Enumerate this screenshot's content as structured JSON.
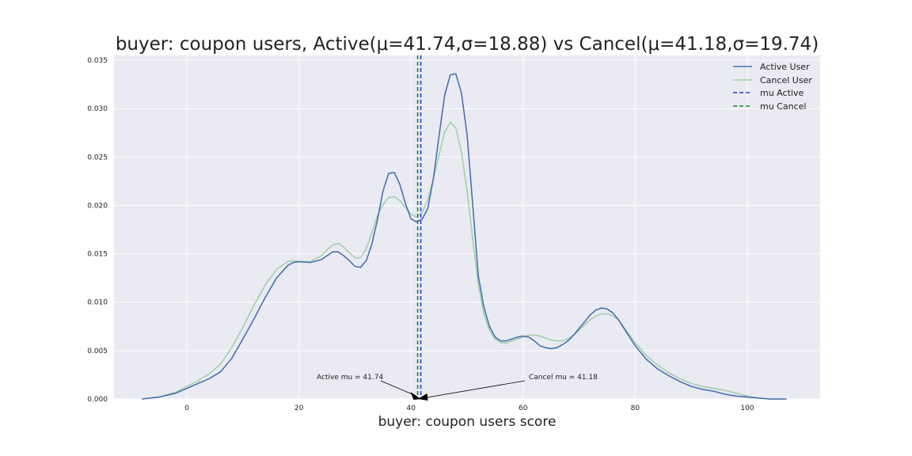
{
  "chart_data": {
    "type": "line",
    "title": "buyer: coupon users, Active(μ=41.74,σ=18.88) vs Cancel(μ=41.18,σ=19.74)",
    "xlabel": "buyer: coupon users score",
    "ylabel": "",
    "xlim": [
      -13,
      113
    ],
    "ylim": [
      0,
      0.0355
    ],
    "grid": true,
    "legend_position": "top-right",
    "x_ticks": [
      "0",
      "20",
      "40",
      "60",
      "80",
      "100"
    ],
    "y_ticks": [
      "0.000",
      "0.005",
      "0.010",
      "0.015",
      "0.020",
      "0.025",
      "0.030",
      "0.035"
    ],
    "series": [
      {
        "name": "Active User",
        "color": "#4c72b0",
        "x": [
          -8,
          -5,
          -2,
          0,
          2,
          4,
          6,
          8,
          10,
          12,
          14,
          16,
          18,
          19,
          20,
          22,
          24,
          26,
          27,
          28,
          29,
          30,
          31,
          32,
          33,
          34,
          35,
          36,
          37,
          38,
          39,
          40,
          41,
          42,
          43,
          44,
          45,
          46,
          47,
          48,
          49,
          50,
          51,
          52,
          53,
          54,
          55,
          56,
          57,
          58,
          59,
          60,
          61,
          62,
          63,
          64,
          65,
          66,
          67,
          68,
          69,
          70,
          71,
          72,
          73,
          74,
          75,
          76,
          77,
          78,
          80,
          82,
          84,
          86,
          88,
          90,
          92,
          94,
          96,
          98,
          100,
          102,
          104,
          107
        ],
        "y": [
          0.0,
          0.0002,
          0.0006,
          0.0011,
          0.0016,
          0.0021,
          0.0028,
          0.0042,
          0.0062,
          0.0083,
          0.0105,
          0.0125,
          0.0138,
          0.0141,
          0.0142,
          0.0141,
          0.0144,
          0.0152,
          0.0152,
          0.0148,
          0.0143,
          0.0137,
          0.0136,
          0.0143,
          0.016,
          0.0185,
          0.0215,
          0.0233,
          0.0234,
          0.0222,
          0.0202,
          0.0186,
          0.0183,
          0.0186,
          0.0197,
          0.0228,
          0.0272,
          0.0314,
          0.0335,
          0.0336,
          0.0316,
          0.0273,
          0.0201,
          0.0127,
          0.0095,
          0.0075,
          0.0064,
          0.006,
          0.006,
          0.0062,
          0.0064,
          0.0065,
          0.0064,
          0.006,
          0.0055,
          0.0053,
          0.0052,
          0.0053,
          0.0056,
          0.006,
          0.0066,
          0.0073,
          0.008,
          0.0087,
          0.0092,
          0.0094,
          0.0093,
          0.0089,
          0.0082,
          0.0073,
          0.0055,
          0.0041,
          0.0031,
          0.0024,
          0.0018,
          0.0013,
          0.001,
          0.0008,
          0.0005,
          0.0003,
          0.0002,
          0.0001,
          0.0,
          0.0
        ]
      },
      {
        "name": "Cancel User",
        "color": "#a1d0ab",
        "x": [
          -8,
          -5,
          -2,
          0,
          2,
          4,
          6,
          8,
          10,
          12,
          14,
          16,
          18,
          19,
          20,
          22,
          24,
          25,
          26,
          27,
          28,
          29,
          30,
          31,
          32,
          33,
          34,
          35,
          36,
          37,
          38,
          39,
          40,
          41,
          42,
          43,
          44,
          45,
          46,
          47,
          48,
          49,
          50,
          51,
          52,
          53,
          54,
          55,
          56,
          57,
          58,
          59,
          60,
          61,
          62,
          63,
          64,
          65,
          66,
          67,
          68,
          69,
          70,
          71,
          72,
          73,
          74,
          75,
          76,
          77,
          78,
          80,
          82,
          84,
          86,
          88,
          90,
          92,
          94,
          96,
          98,
          100,
          102,
          104,
          107
        ],
        "y": [
          0.0,
          0.0002,
          0.0007,
          0.0013,
          0.0019,
          0.0026,
          0.0036,
          0.0053,
          0.0074,
          0.0097,
          0.0118,
          0.0134,
          0.0142,
          0.0143,
          0.0142,
          0.0142,
          0.0148,
          0.0154,
          0.0159,
          0.0161,
          0.0157,
          0.0151,
          0.0146,
          0.0146,
          0.0155,
          0.0172,
          0.0189,
          0.0201,
          0.0208,
          0.0209,
          0.0205,
          0.0198,
          0.0191,
          0.0188,
          0.0193,
          0.0206,
          0.0228,
          0.0252,
          0.0276,
          0.0286,
          0.028,
          0.0255,
          0.0215,
          0.0165,
          0.0118,
          0.0088,
          0.0071,
          0.0062,
          0.0058,
          0.0058,
          0.006,
          0.0062,
          0.0064,
          0.0066,
          0.0066,
          0.0065,
          0.0063,
          0.0061,
          0.006,
          0.006,
          0.0062,
          0.0066,
          0.0071,
          0.0077,
          0.0082,
          0.0086,
          0.0088,
          0.0088,
          0.0086,
          0.0082,
          0.0074,
          0.0058,
          0.0045,
          0.0035,
          0.0027,
          0.0021,
          0.0016,
          0.0013,
          0.0011,
          0.0009,
          0.0006,
          0.0003,
          0.0001,
          0.0,
          0.0
        ]
      }
    ],
    "vlines": [
      {
        "name": "mu Active",
        "x": 41.74,
        "color": "#1f3ed8",
        "style": "dashed"
      },
      {
        "name": "mu Cancel",
        "x": 41.18,
        "color": "#1a8a1a",
        "style": "dashed"
      }
    ],
    "annotations": [
      {
        "text": "Active mu = 41.74",
        "target_x": 41.74,
        "target_y": 0.0
      },
      {
        "text": "Cancel mu = 41.18",
        "target_x": 41.18,
        "target_y": 0.0
      }
    ],
    "legend": [
      "Active User",
      "Cancel User",
      "mu Active",
      "mu Cancel"
    ]
  }
}
